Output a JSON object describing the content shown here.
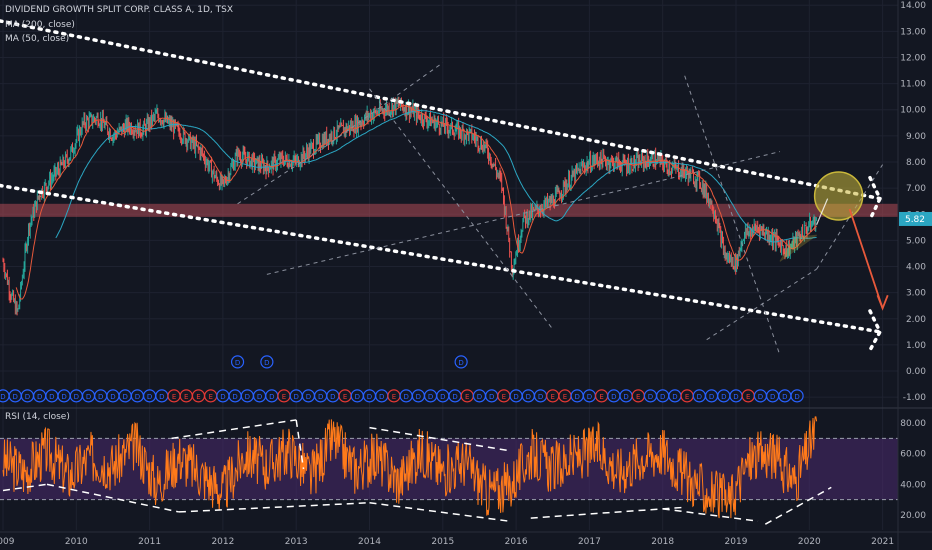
{
  "header": {
    "title": "DIVIDEND GROWTH SPLIT CORP. CLASS A, 1D, TSX",
    "ma200": "MA (200, close)",
    "ma50": "MA (50, close)",
    "rsi": "RSI (14, close)"
  },
  "colors": {
    "background": "#131722",
    "candle_up": "#26a69a",
    "candle_down": "#ef5350",
    "ma200": "#2ba6c2",
    "ma50": "#e8593b",
    "rsi_line": "#ff7a1a",
    "rsi_band": "#4b2a6e",
    "resistance_zone": "#b04b55",
    "forecast_arrow": "#e8593b",
    "circle": "#c9b73a",
    "dividend_marker": "#2962ff",
    "earnings_marker": "#e53935"
  },
  "chart_data": {
    "type": "line",
    "title": "DIVIDEND GROWTH SPLIT CORP. CLASS A, 1D, TSX",
    "price_axis": {
      "ticks": [
        "14.00",
        "13.00",
        "12.00",
        "11.00",
        "10.00",
        "9.00",
        "8.00",
        "7.00",
        "6.00",
        "5.00",
        "4.00",
        "3.00",
        "2.00",
        "1.00",
        "0.00",
        "-1.00"
      ],
      "min": -1.3,
      "max": 14.2
    },
    "time_axis": {
      "ticks": [
        "2009",
        "2010",
        "2011",
        "2012",
        "2013",
        "2014",
        "2015",
        "2016",
        "2017",
        "2018",
        "2019",
        "2020",
        "2021"
      ]
    },
    "last_price": "5.82",
    "series": [
      {
        "kind": "price",
        "x": [
          2009.0,
          2009.1,
          2009.2,
          2009.35,
          2009.5,
          2009.7,
          2009.9,
          2010.1,
          2010.3,
          2010.5,
          2010.7,
          2010.9,
          2011.1,
          2011.3,
          2011.5,
          2011.7,
          2011.9,
          2012.0,
          2012.2,
          2012.4,
          2012.6,
          2012.8,
          2013.0,
          2013.2,
          2013.4,
          2013.6,
          2013.8,
          2014.0,
          2014.2,
          2014.4,
          2014.6,
          2014.8,
          2015.0,
          2015.2,
          2015.4,
          2015.6,
          2015.8,
          2015.95,
          2016.1,
          2016.3,
          2016.5,
          2016.7,
          2016.9,
          2017.1,
          2017.3,
          2017.5,
          2017.7,
          2017.9,
          2018.1,
          2018.3,
          2018.5,
          2018.7,
          2018.85,
          2019.0,
          2019.1,
          2019.3,
          2019.5,
          2019.7,
          2019.9,
          2020.1
        ],
        "y": [
          4.2,
          3.0,
          2.2,
          5.5,
          6.8,
          7.5,
          8.2,
          9.5,
          9.7,
          9.0,
          9.4,
          9.2,
          9.8,
          9.4,
          8.9,
          8.4,
          7.4,
          7.1,
          8.3,
          8.0,
          7.8,
          8.1,
          8.0,
          8.5,
          8.9,
          9.2,
          9.4,
          9.8,
          10.0,
          10.2,
          9.9,
          9.6,
          9.4,
          9.2,
          9.0,
          8.5,
          7.2,
          3.9,
          5.8,
          6.2,
          6.5,
          7.2,
          7.8,
          8.1,
          8.0,
          7.9,
          8.0,
          8.1,
          7.8,
          7.6,
          7.3,
          6.2,
          4.4,
          4.1,
          5.2,
          5.5,
          5.1,
          4.6,
          5.3,
          5.8
        ]
      },
      {
        "kind": "rsi",
        "x": [
          2009.0,
          2009.3,
          2009.6,
          2009.9,
          2010.2,
          2010.5,
          2010.8,
          2011.1,
          2011.4,
          2011.7,
          2012.0,
          2012.3,
          2012.6,
          2012.9,
          2013.2,
          2013.5,
          2013.8,
          2014.1,
          2014.4,
          2014.7,
          2015.0,
          2015.3,
          2015.6,
          2015.9,
          2016.2,
          2016.5,
          2016.8,
          2017.1,
          2017.4,
          2017.7,
          2018.0,
          2018.3,
          2018.6,
          2018.9,
          2019.2,
          2019.5,
          2019.8,
          2020.1
        ],
        "y": [
          55,
          48,
          62,
          45,
          58,
          52,
          66,
          40,
          58,
          47,
          35,
          60,
          52,
          63,
          45,
          70,
          50,
          58,
          42,
          62,
          48,
          55,
          35,
          38,
          60,
          50,
          57,
          64,
          48,
          58,
          62,
          45,
          35,
          28,
          57,
          60,
          42,
          76
        ]
      }
    ],
    "levels": {
      "rsi_upper": 70,
      "rsi_lower": 30,
      "rsi_ticks": [
        "80.00",
        "60.00",
        "40.00",
        "20.00"
      ]
    },
    "markers": {
      "dividend": "D",
      "earnings": "E"
    },
    "grid": true,
    "legend": "top-left"
  }
}
